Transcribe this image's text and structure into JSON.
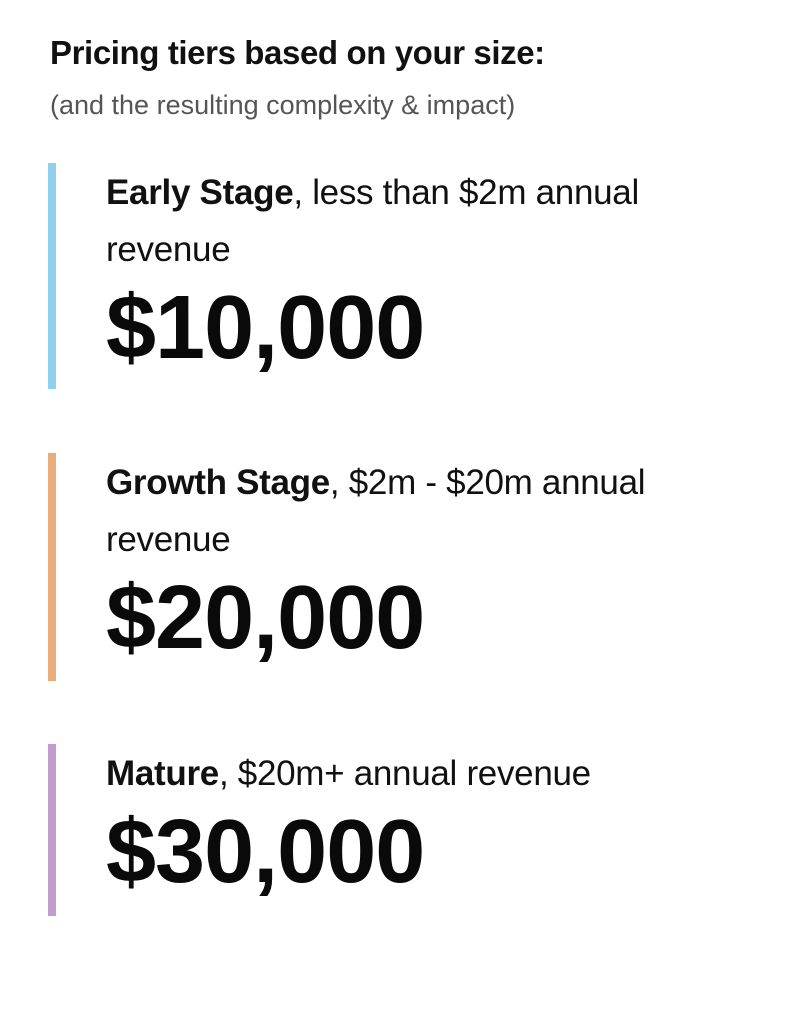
{
  "heading": "Pricing tiers based on your size:",
  "subheading": "(and the resulting complexity & impact)",
  "tiers": [
    {
      "name": "Early Stage",
      "description": ", less than $2m annual revenue",
      "price": "$10,000",
      "accent_color": "#8fd0ee"
    },
    {
      "name": "Growth Stage",
      "description": ", $2m - $20m annual revenue",
      "price": "$20,000",
      "accent_color": "#e9ad7b"
    },
    {
      "name": "Mature",
      "description": ", $20m+ annual revenue",
      "price": "$30,000",
      "accent_color": "#c19ccc"
    }
  ]
}
